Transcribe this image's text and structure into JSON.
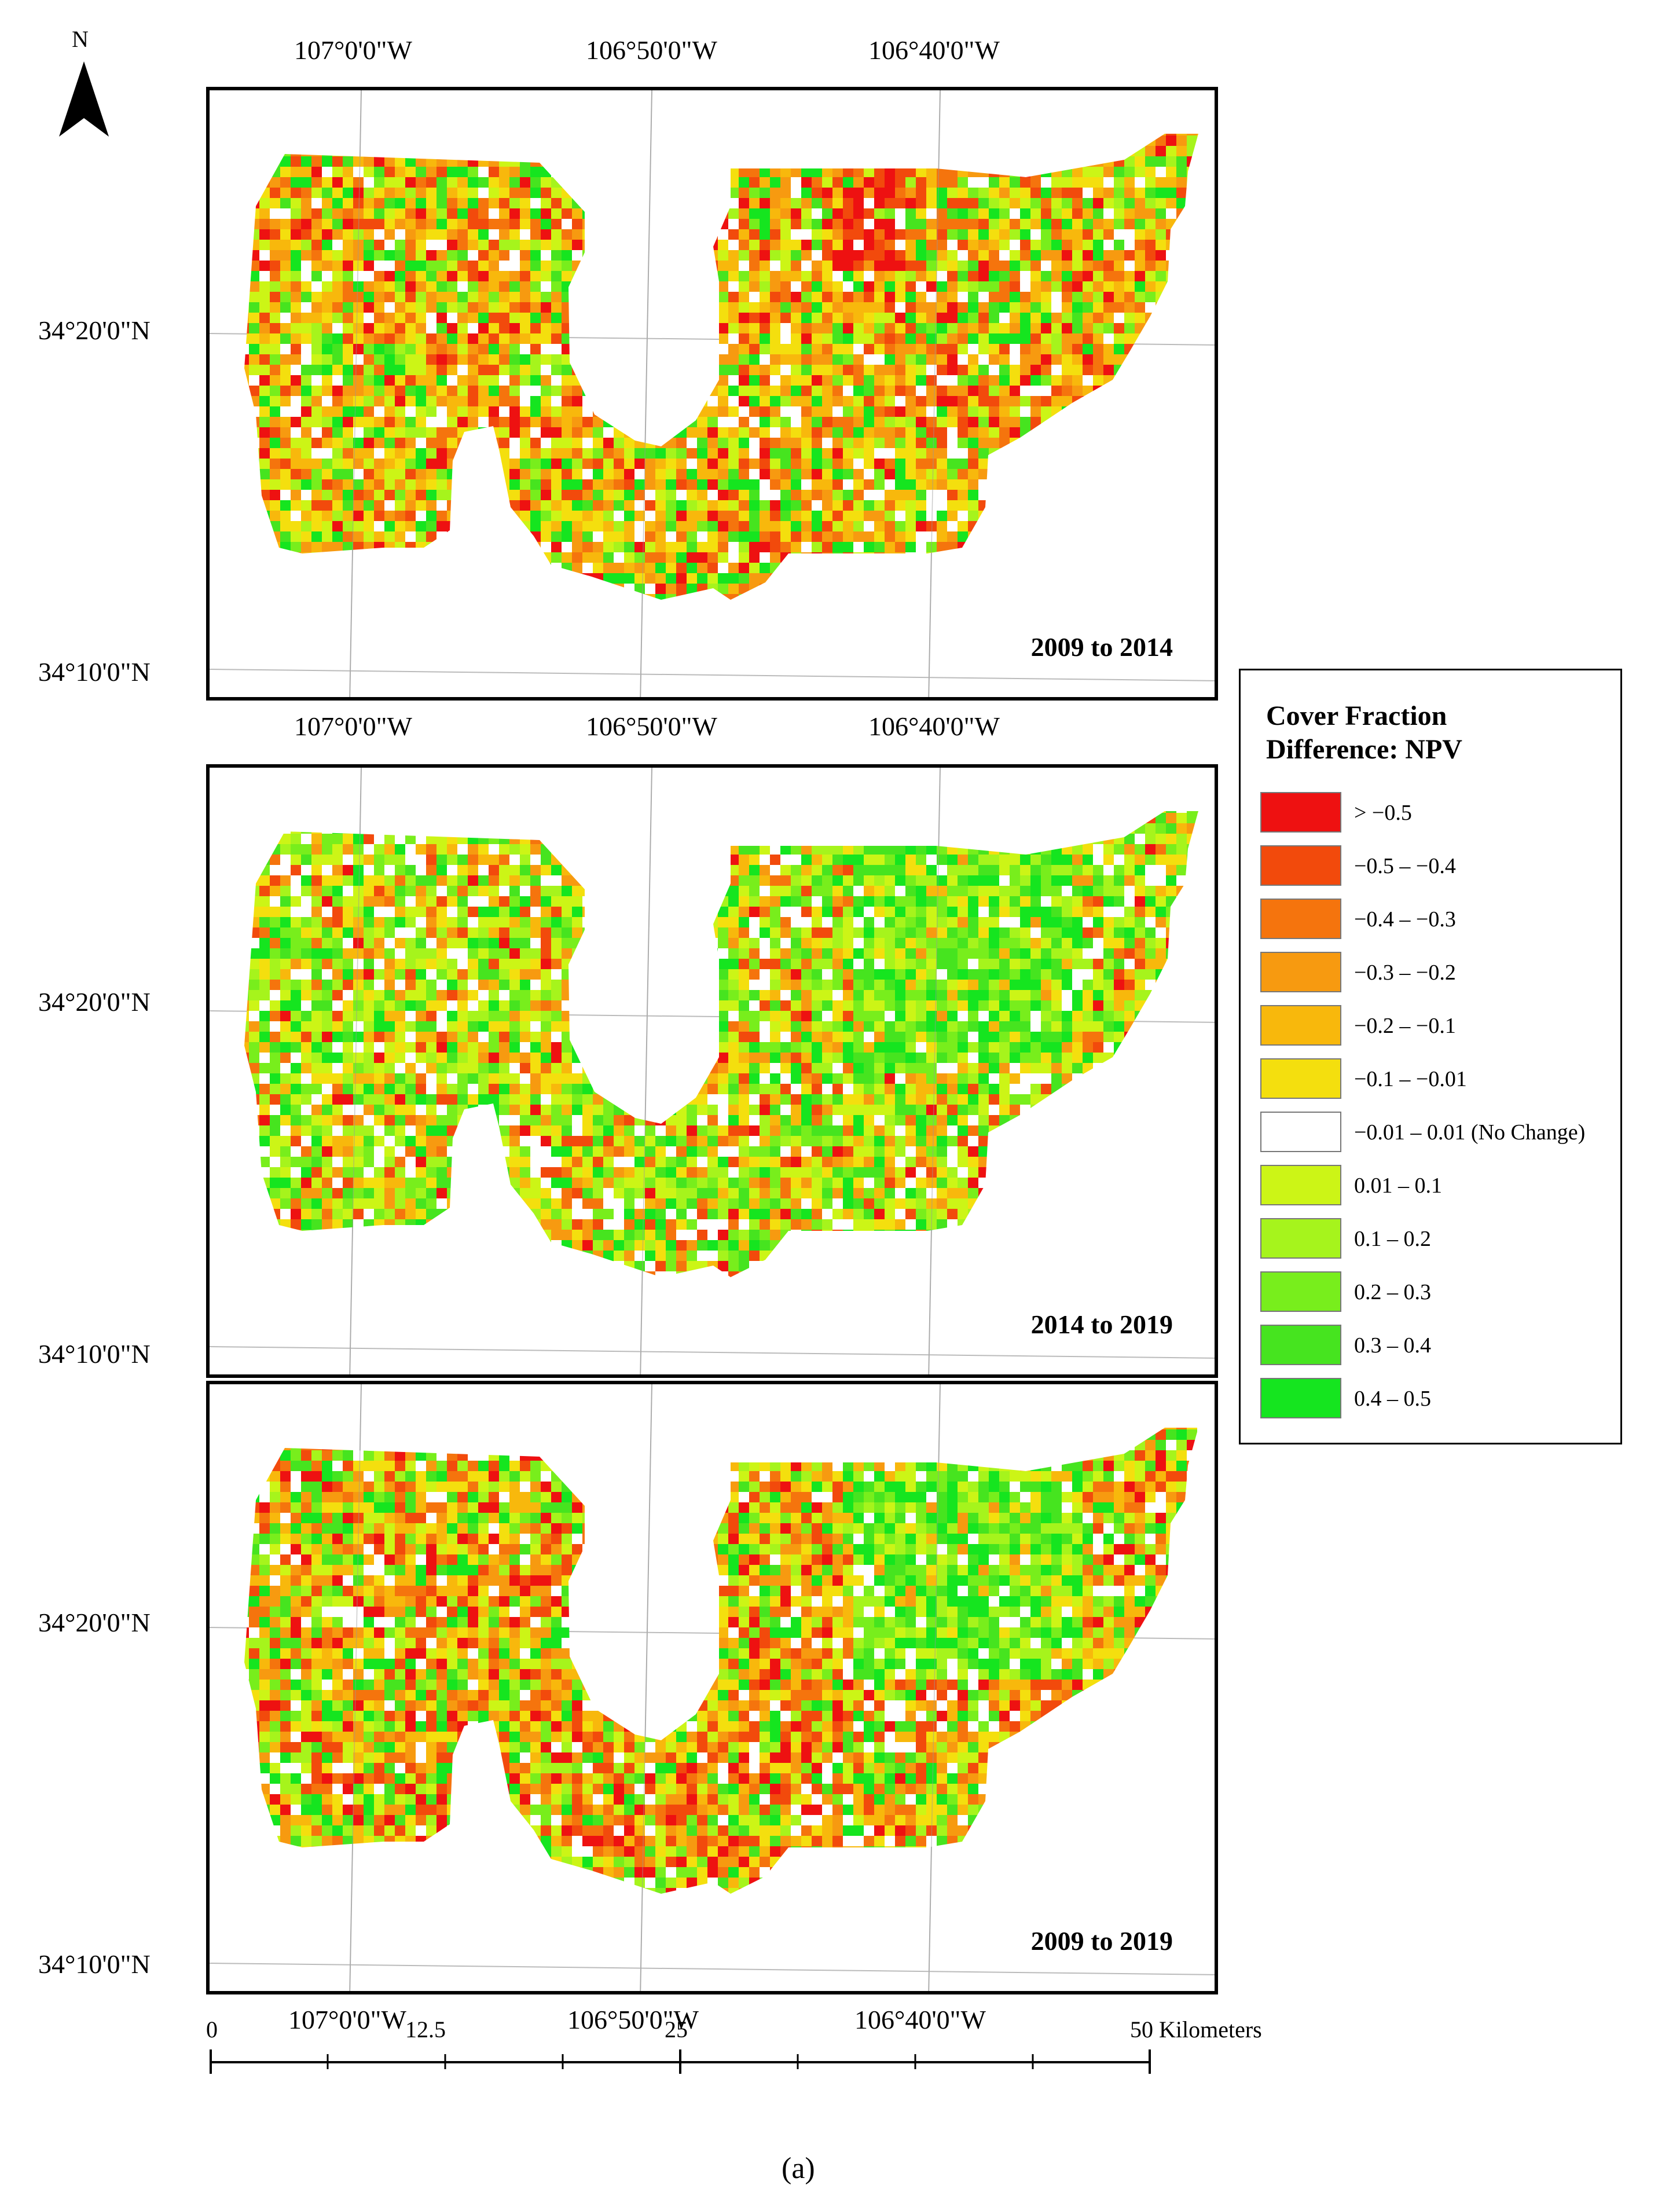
{
  "north_label": "N",
  "top_lon_labels": [
    "107°0'0\"W",
    "106°50'0\"W",
    "106°40'0\"W"
  ],
  "lat_labels": [
    "34°20'0\"N",
    "34°10'0\"N"
  ],
  "panels": [
    {
      "title": "2009 to 2014"
    },
    {
      "title": "2014 to 2019"
    },
    {
      "title": "2009 to 2019"
    }
  ],
  "legend": {
    "title_line1": "Cover Fraction",
    "title_line2": "Difference: NPV",
    "classes": [
      {
        "label": "> −0.5",
        "color": "#ee1111"
      },
      {
        "label": "−0.5 – −0.4",
        "color": "#f24a0c"
      },
      {
        "label": "−0.4 – −0.3",
        "color": "#f5740d"
      },
      {
        "label": "−0.3 – −0.2",
        "color": "#f79a10"
      },
      {
        "label": "−0.2 – −0.1",
        "color": "#f8b80c"
      },
      {
        "label": "−0.1 – −0.01",
        "color": "#f4df0e"
      },
      {
        "label": "−0.01 – 0.01 (No Change)",
        "color": "#ffffff"
      },
      {
        "label": "0.01 – 0.1",
        "color": "#ccf516"
      },
      {
        "label": "0.1 – 0.2",
        "color": "#a6f41c"
      },
      {
        "label": "0.2 – 0.3",
        "color": "#78ee1c"
      },
      {
        "label": "0.3 – 0.4",
        "color": "#46e41f"
      },
      {
        "label": "0.4 – 0.5",
        "color": "#15e51f"
      }
    ]
  },
  "scale_bar": {
    "ticks": [
      "0",
      "12.5",
      "25",
      "50 Kilometers"
    ]
  },
  "caption": "(a)"
}
